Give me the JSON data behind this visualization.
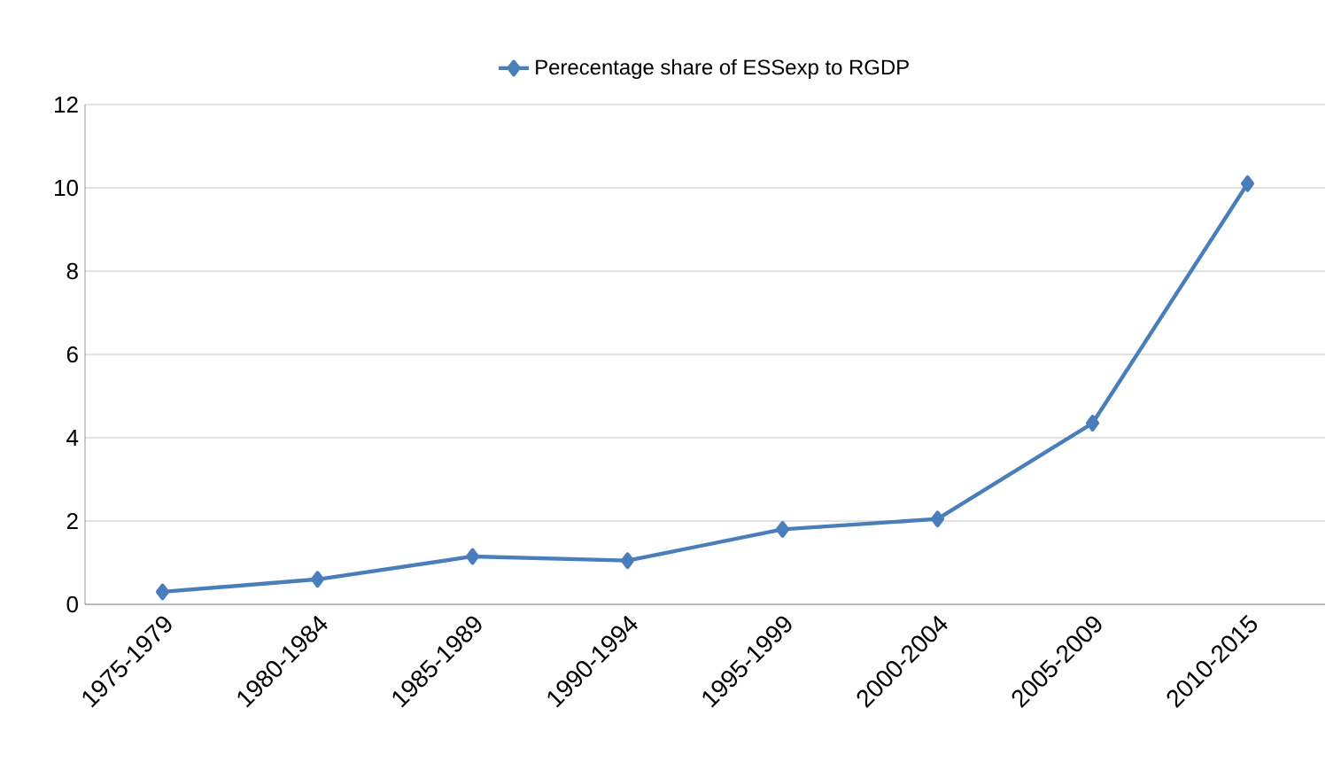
{
  "chart_data": {
    "type": "line",
    "categories": [
      "1975-1979",
      "1980-1984",
      "1985-1989",
      "1990-1994",
      "1995-1999",
      "2000-2004",
      "2005-2009",
      "2010-2015"
    ],
    "series": [
      {
        "name": "Perecentage share of ESSexp to RGDP",
        "color": "#4a7ebb",
        "values": [
          0.3,
          0.6,
          1.15,
          1.05,
          1.8,
          2.05,
          4.35,
          10.1
        ]
      }
    ],
    "ylim": [
      0,
      12
    ],
    "yticks": [
      0,
      2,
      4,
      6,
      8,
      10,
      12
    ],
    "grid": "y",
    "legend": "top",
    "marker": "diamond",
    "line_style": "solid"
  }
}
